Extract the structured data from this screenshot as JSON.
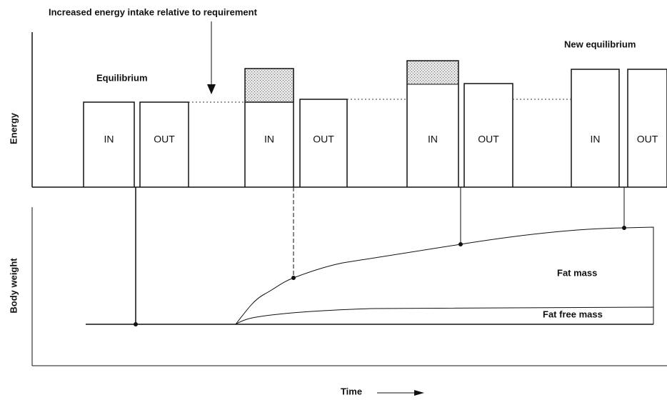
{
  "annotation": "Increased energy intake relative to requirement",
  "labels": {
    "equilibrium": "Equilibrium",
    "new_equilibrium": "New  equilibrium",
    "energy_axis": "Energy",
    "weight_axis": "Body weight",
    "time_axis": "Time",
    "fat_mass": "Fat mass",
    "fat_free_mass": "Fat free mass"
  },
  "bars": [
    {
      "label": "IN"
    },
    {
      "label": "OUT"
    },
    {
      "label": "IN"
    },
    {
      "label": "OUT"
    },
    {
      "label": "IN"
    },
    {
      "label": "OUT"
    },
    {
      "label": "IN"
    },
    {
      "label": "OUT"
    }
  ]
}
